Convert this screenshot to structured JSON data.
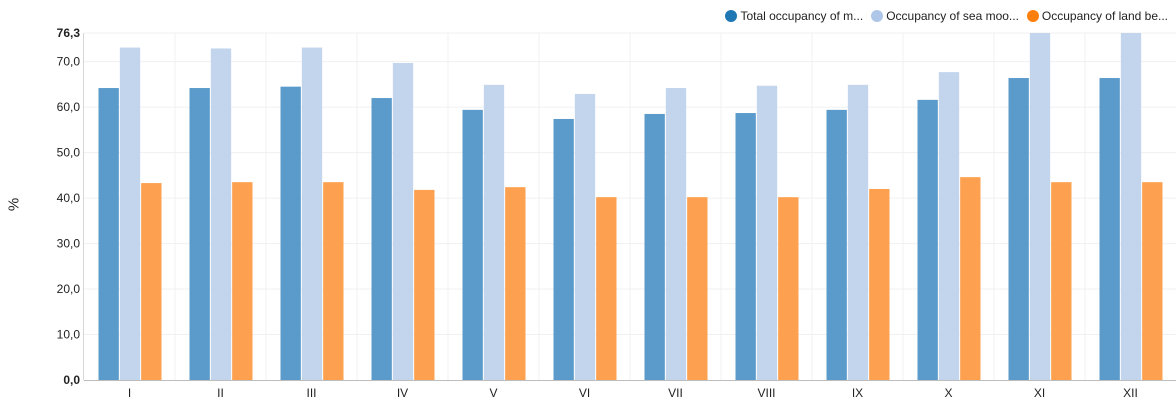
{
  "chart_data": {
    "type": "bar",
    "title": "",
    "xlabel": "",
    "ylabel": "%",
    "ylim": [
      0,
      76.3
    ],
    "y_ticks": [
      "0,0",
      "10,0",
      "20,0",
      "30,0",
      "40,0",
      "50,0",
      "60,0",
      "70,0",
      "76,3"
    ],
    "grid": true,
    "legend_position": "top-right",
    "categories": [
      "I",
      "II",
      "III",
      "IV",
      "V",
      "VI",
      "VII",
      "VIII",
      "IX",
      "X",
      "XI",
      "XII"
    ],
    "series": [
      {
        "name": "Total occupancy of m...",
        "color": "#5b9bcb",
        "legend_color": "#1f77b4",
        "values": [
          64.2,
          64.2,
          64.5,
          62.0,
          59.4,
          57.4,
          58.5,
          58.7,
          59.4,
          61.6,
          66.4,
          66.4
        ]
      },
      {
        "name": "Occupancy of sea moo...",
        "color": "#c2d5ed",
        "legend_color": "#aec7e8",
        "values": [
          73.1,
          72.9,
          73.1,
          69.7,
          64.9,
          62.9,
          64.2,
          64.7,
          64.9,
          67.7,
          76.3,
          76.3
        ]
      },
      {
        "name": "Occupancy of land be...",
        "color": "#fda04f",
        "legend_color": "#ff7f0e",
        "values": [
          43.3,
          43.5,
          43.5,
          41.8,
          42.4,
          40.2,
          40.2,
          40.2,
          42.0,
          44.6,
          43.5,
          43.5
        ]
      }
    ]
  }
}
